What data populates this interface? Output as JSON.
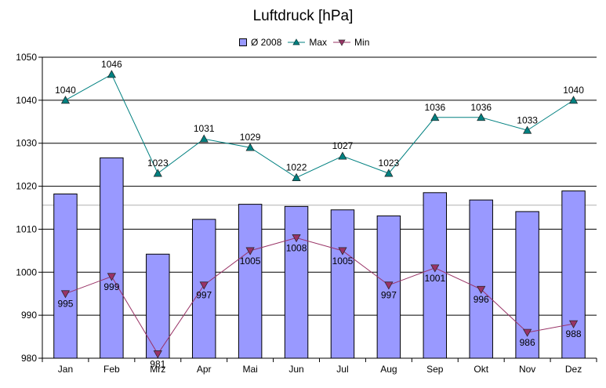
{
  "chart_data": {
    "type": "bar",
    "title": "Luftdruck [hPa]",
    "categories": [
      "Jan",
      "Feb",
      "Mrz",
      "Apr",
      "Mai",
      "Jun",
      "Jul",
      "Aug",
      "Sep",
      "Okt",
      "Nov",
      "Dez"
    ],
    "series": [
      {
        "name": "Ø 2008",
        "type": "bar",
        "values": [
          1018.2,
          1026.6,
          1004.2,
          1012.3,
          1015.8,
          1015.3,
          1014.5,
          1013.1,
          1018.5,
          1016.8,
          1014.1,
          1018.9
        ],
        "color": "#9999ff"
      },
      {
        "name": "Max",
        "type": "line",
        "values": [
          1040,
          1046,
          1023,
          1031,
          1029,
          1022,
          1027,
          1023,
          1036,
          1036,
          1033,
          1040
        ],
        "color": "#008080",
        "marker": "triangle-up"
      },
      {
        "name": "Min",
        "type": "line",
        "values": [
          995,
          999,
          981,
          997,
          1005,
          1008,
          1005,
          997,
          1001,
          996,
          986,
          988
        ],
        "color": "#993366",
        "marker": "triangle-down"
      }
    ],
    "max_labels": [
      "1040",
      "1046",
      "1023",
      "1031",
      "1029",
      "1022",
      "1027",
      "1023",
      "1036",
      "1036",
      "1033",
      "1040"
    ],
    "min_labels": [
      "995",
      "999",
      "981",
      "997",
      "1005",
      "1008",
      "1005",
      "997",
      "1001",
      "996",
      "986",
      "988"
    ],
    "ylim": [
      980,
      1050
    ],
    "yticks": [
      "980",
      "990",
      "1000",
      "1010",
      "1020",
      "1030",
      "1040",
      "1050"
    ],
    "reference_line": 1015.6,
    "grid": true,
    "legend_position": "top"
  }
}
